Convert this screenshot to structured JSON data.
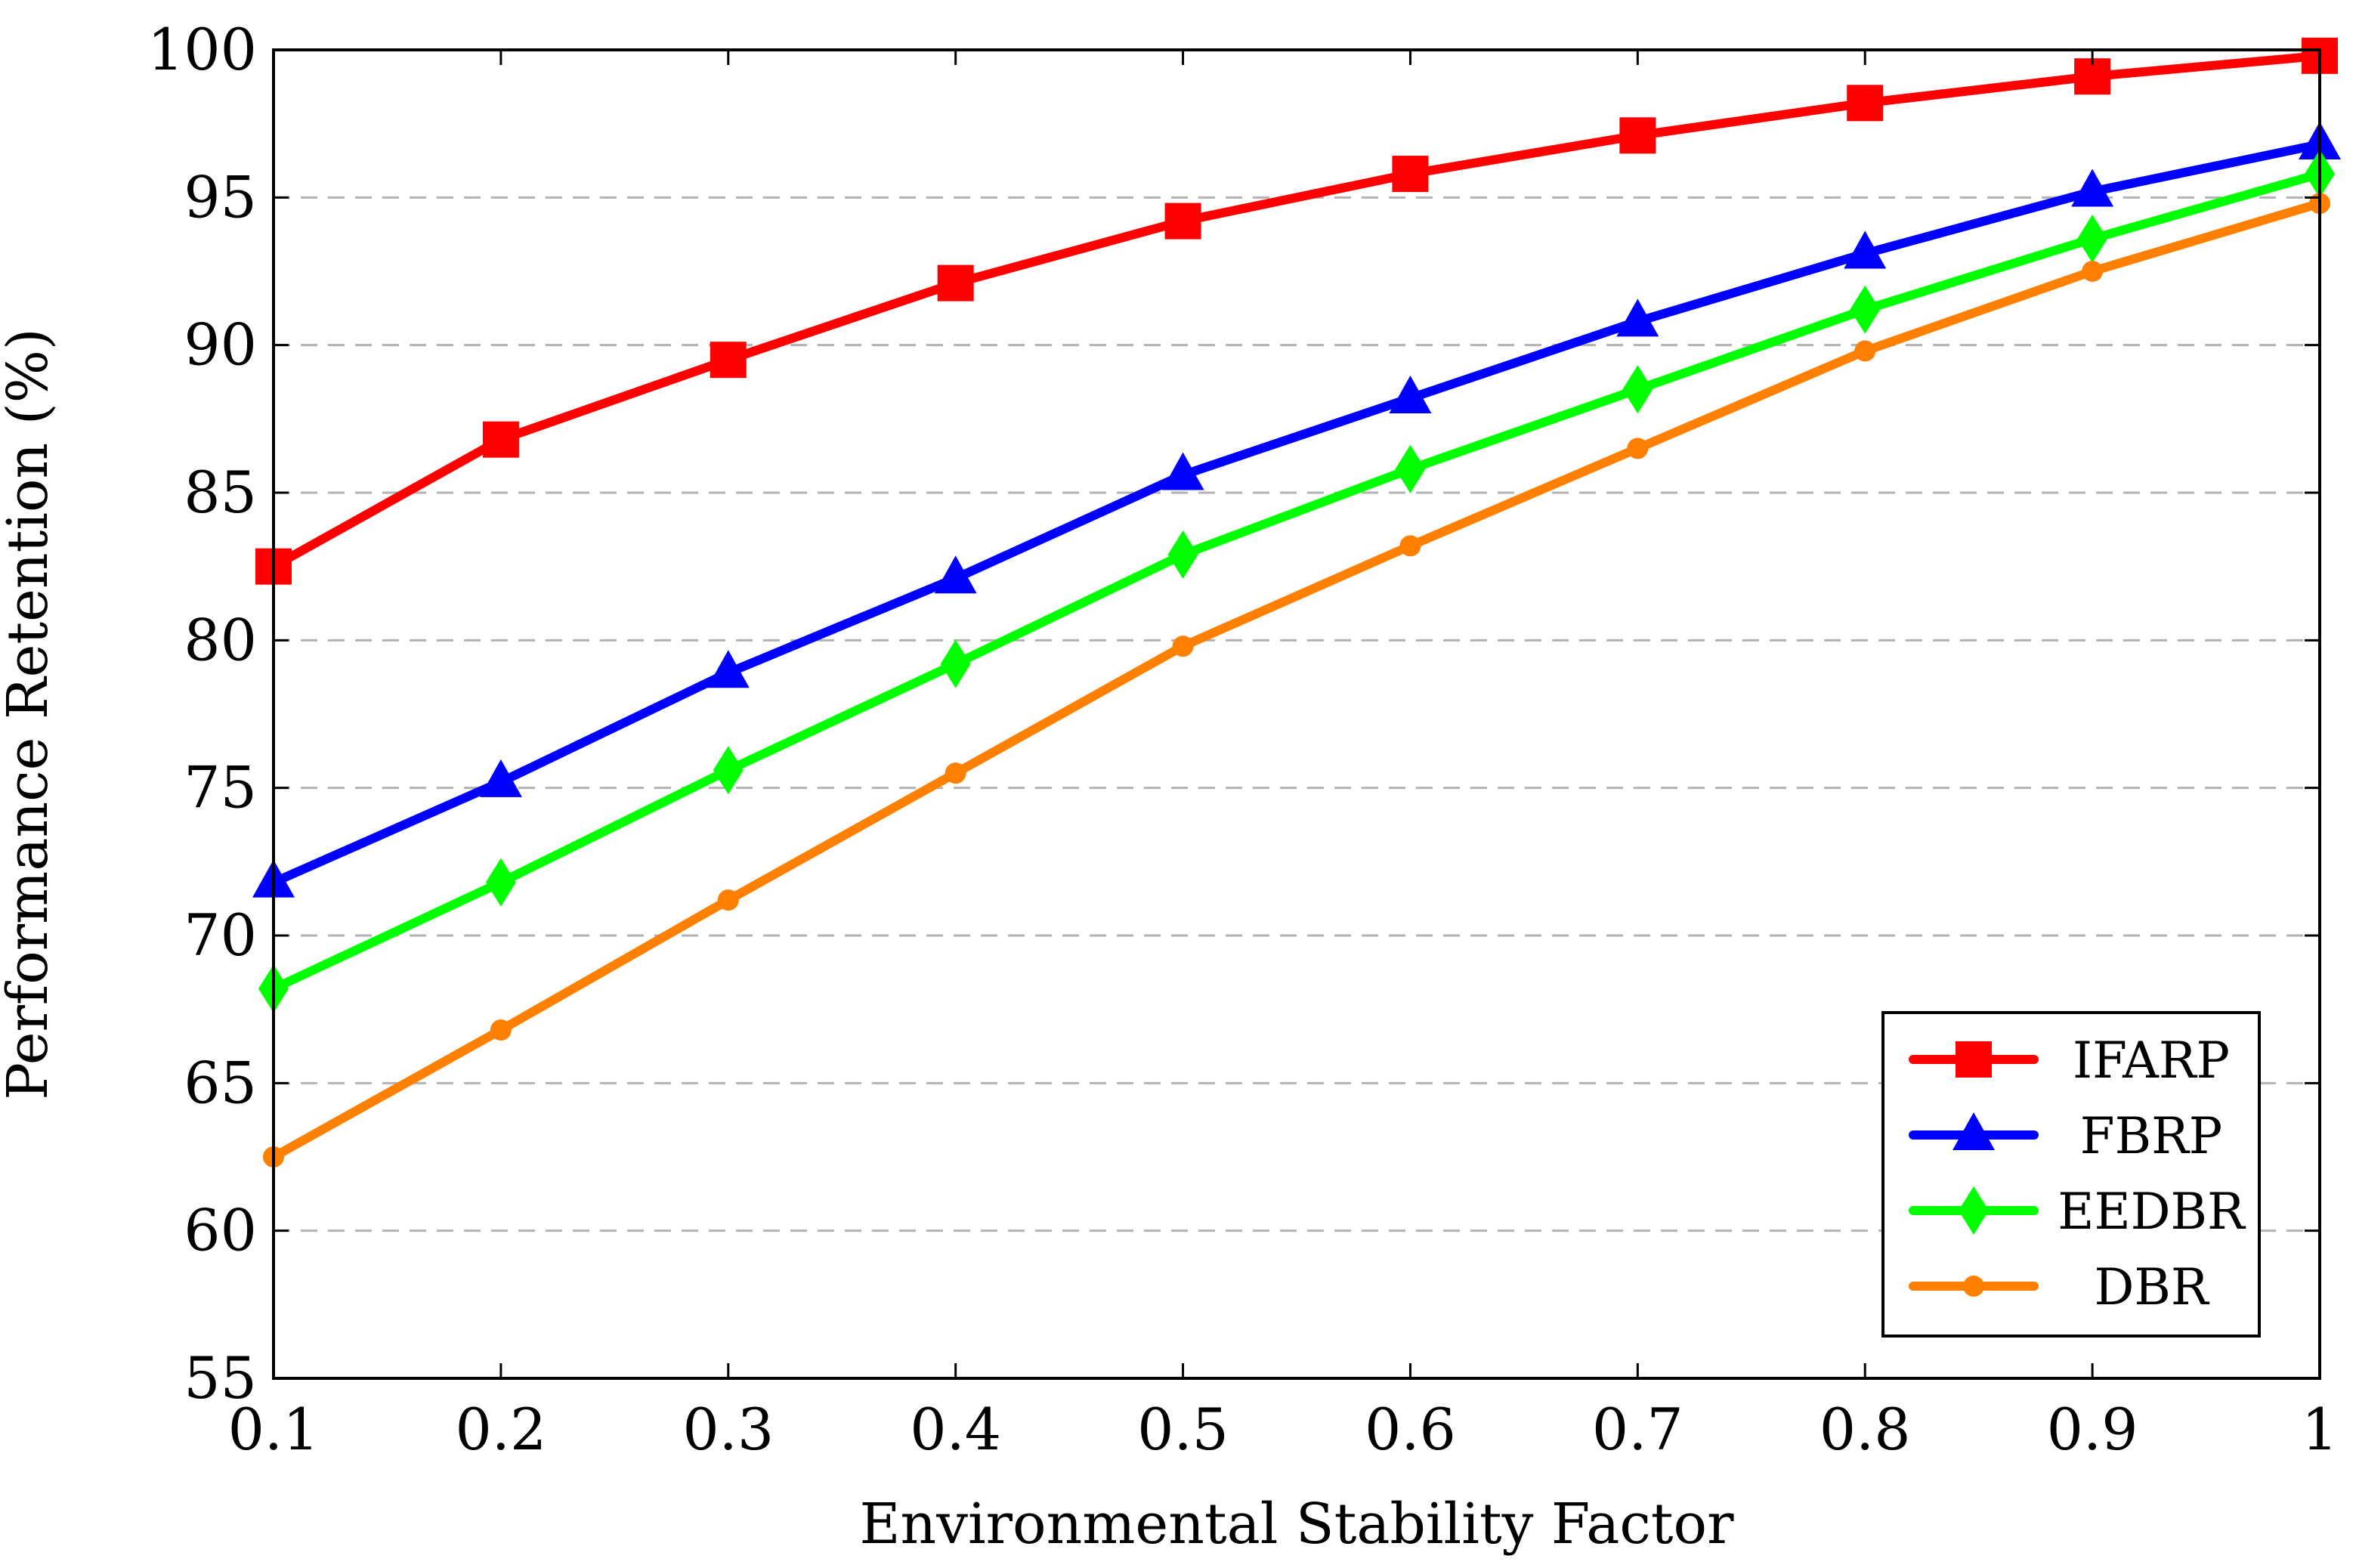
{
  "chart_data": {
    "type": "line",
    "title": "",
    "xlabel": "Environmental Stability Factor",
    "ylabel": "Performance Retention (%)",
    "x": [
      0.1,
      0.2,
      0.3,
      0.4,
      0.5,
      0.6,
      0.7,
      0.8,
      0.9,
      1.0
    ],
    "xlim": [
      0.1,
      1.0
    ],
    "ylim": [
      55,
      100
    ],
    "x_ticks": [
      "0.1",
      "0.2",
      "0.3",
      "0.4",
      "0.5",
      "0.6",
      "0.7",
      "0.8",
      "0.9",
      "1"
    ],
    "y_ticks": [
      55,
      60,
      65,
      70,
      75,
      80,
      85,
      90,
      95,
      100
    ],
    "grid": "horizontal dashed",
    "legend_position": "bottom-right",
    "series": [
      {
        "name": "IFARP",
        "color": "#ff0000",
        "marker": "square",
        "values": [
          82.5,
          86.8,
          89.5,
          92.1,
          94.2,
          95.8,
          97.1,
          98.2,
          99.1,
          99.8
        ]
      },
      {
        "name": "FBRP",
        "color": "#0000ff",
        "marker": "triangle",
        "values": [
          71.8,
          75.2,
          78.9,
          82.1,
          85.6,
          88.2,
          90.8,
          93.1,
          95.2,
          96.8
        ]
      },
      {
        "name": "EEDBR",
        "color": "#00ff00",
        "marker": "diamond",
        "values": [
          68.2,
          71.8,
          75.6,
          79.2,
          82.9,
          85.8,
          88.5,
          91.2,
          93.6,
          95.8
        ]
      },
      {
        "name": "DBR",
        "color": "#ff8000",
        "marker": "circle",
        "values": [
          62.5,
          66.8,
          71.2,
          75.5,
          79.8,
          83.2,
          86.5,
          89.8,
          92.5,
          94.8
        ]
      }
    ]
  }
}
